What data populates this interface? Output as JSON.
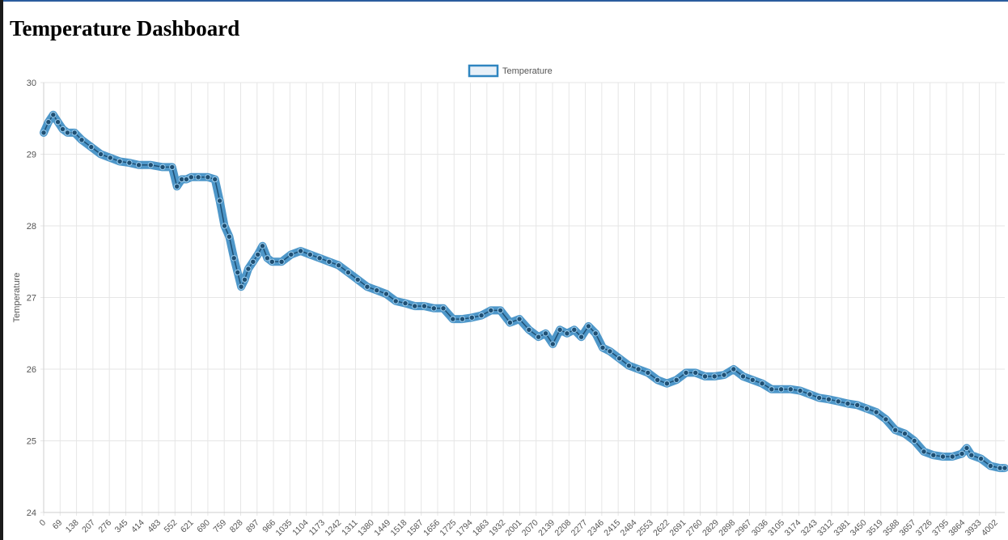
{
  "page": {
    "title": "Temperature Dashboard"
  },
  "chart_data": {
    "type": "line",
    "legend": {
      "label": "Temperature",
      "position": "top-center"
    },
    "ylabel": "Temperature",
    "xlabel": "",
    "ylim": [
      24,
      30
    ],
    "xlim": [
      0,
      4040
    ],
    "y_ticks": [
      24,
      25,
      26,
      27,
      28,
      29,
      30
    ],
    "x_ticks": [
      0,
      69,
      138,
      207,
      276,
      345,
      414,
      483,
      552,
      621,
      690,
      759,
      828,
      897,
      966,
      1035,
      1104,
      1173,
      1242,
      1311,
      1380,
      1449,
      1518,
      1587,
      1656,
      1725,
      1794,
      1863,
      1932,
      2001,
      2070,
      2139,
      2208,
      2277,
      2346,
      2415,
      2484,
      2553,
      2622,
      2691,
      2760,
      2829,
      2898,
      2967,
      3036,
      3105,
      3174,
      3243,
      3312,
      3381,
      3450,
      3519,
      3588,
      3657,
      3726,
      3795,
      3864,
      3933,
      4002
    ],
    "grid": true,
    "colors": {
      "line": "#2f85c0",
      "point": "#1f4f73",
      "legend_fill": "#e8f0f8",
      "grid": "#e6e6e6"
    },
    "series": [
      {
        "name": "Temperature",
        "x": [
          0,
          20,
          40,
          60,
          80,
          100,
          130,
          160,
          200,
          240,
          280,
          320,
          360,
          400,
          450,
          500,
          540,
          560,
          580,
          600,
          620,
          650,
          690,
          720,
          740,
          760,
          780,
          800,
          815,
          830,
          845,
          860,
          880,
          900,
          920,
          940,
          960,
          1000,
          1040,
          1080,
          1120,
          1160,
          1200,
          1240,
          1280,
          1320,
          1360,
          1400,
          1440,
          1480,
          1520,
          1560,
          1600,
          1640,
          1680,
          1720,
          1760,
          1800,
          1840,
          1880,
          1920,
          1960,
          2000,
          2040,
          2080,
          2110,
          2140,
          2170,
          2200,
          2230,
          2260,
          2290,
          2320,
          2350,
          2380,
          2420,
          2460,
          2500,
          2540,
          2580,
          2620,
          2660,
          2700,
          2740,
          2780,
          2820,
          2860,
          2900,
          2940,
          2980,
          3020,
          3060,
          3100,
          3140,
          3180,
          3220,
          3260,
          3300,
          3340,
          3380,
          3420,
          3460,
          3500,
          3540,
          3580,
          3620,
          3660,
          3700,
          3740,
          3780,
          3820,
          3860,
          3880,
          3900,
          3940,
          3980,
          4020,
          4040
        ],
        "values": [
          29.3,
          29.45,
          29.55,
          29.45,
          29.35,
          29.3,
          29.3,
          29.2,
          29.1,
          29.0,
          28.95,
          28.9,
          28.88,
          28.85,
          28.85,
          28.82,
          28.82,
          28.55,
          28.65,
          28.65,
          28.68,
          28.68,
          28.68,
          28.65,
          28.35,
          28.0,
          27.85,
          27.55,
          27.35,
          27.15,
          27.25,
          27.4,
          27.5,
          27.6,
          27.72,
          27.55,
          27.5,
          27.5,
          27.6,
          27.65,
          27.6,
          27.55,
          27.5,
          27.45,
          27.35,
          27.25,
          27.15,
          27.1,
          27.05,
          26.95,
          26.92,
          26.88,
          26.88,
          26.85,
          26.85,
          26.7,
          26.7,
          26.72,
          26.75,
          26.82,
          26.82,
          26.65,
          26.7,
          26.55,
          26.45,
          26.5,
          26.35,
          26.55,
          26.5,
          26.55,
          26.45,
          26.6,
          26.5,
          26.3,
          26.25,
          26.15,
          26.05,
          26.0,
          25.95,
          25.85,
          25.8,
          25.85,
          25.95,
          25.95,
          25.9,
          25.9,
          25.92,
          26.0,
          25.9,
          25.85,
          25.8,
          25.72,
          25.72,
          25.72,
          25.7,
          25.65,
          25.6,
          25.58,
          25.55,
          25.52,
          25.5,
          25.45,
          25.4,
          25.3,
          25.15,
          25.1,
          25.0,
          24.85,
          24.8,
          24.78,
          24.78,
          24.82,
          24.9,
          24.8,
          24.75,
          24.65,
          24.62,
          24.62
        ]
      }
    ]
  }
}
